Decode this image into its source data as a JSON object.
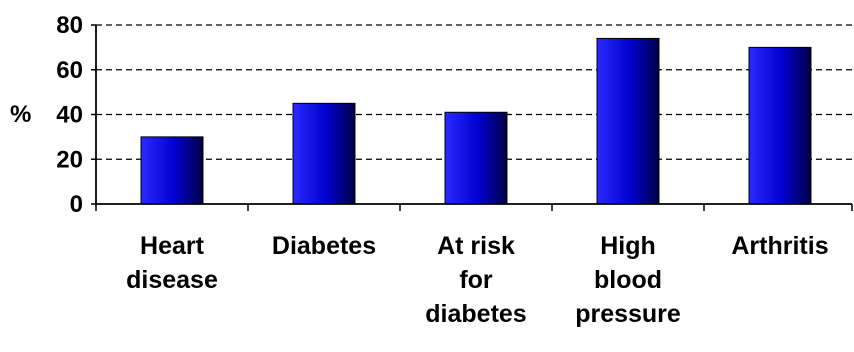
{
  "chart_data": {
    "type": "bar",
    "title": "",
    "xlabel": "",
    "ylabel": "%",
    "categories": [
      [
        "Heart",
        "disease"
      ],
      [
        "Diabetes"
      ],
      [
        "At risk",
        "for",
        "diabetes"
      ],
      [
        "High",
        "blood",
        "pressure"
      ],
      [
        "Arthritis"
      ]
    ],
    "values": [
      30,
      45,
      41,
      74,
      70
    ],
    "ylim": [
      0,
      80
    ],
    "yticks": [
      0,
      20,
      40,
      60,
      80
    ],
    "grid": true,
    "grid_style": "dashed",
    "legend": "none",
    "colors": {
      "bar_light": "#2a2aff",
      "bar_mid": "#0000cc",
      "bar_dark": "#000044",
      "axis": "#000000",
      "grid": "#000000"
    }
  }
}
